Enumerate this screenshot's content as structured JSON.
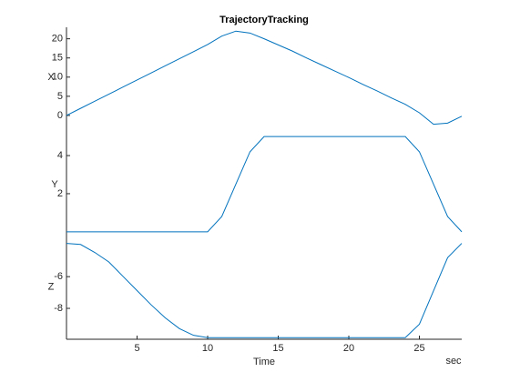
{
  "chart_data": [
    {
      "type": "line",
      "title": "TrajectoryTracking",
      "ylabel": "X",
      "color": "#0072bd",
      "x": [
        0,
        1,
        2,
        3,
        4,
        5,
        6,
        7,
        8,
        9,
        10,
        11,
        12,
        13,
        14,
        15,
        16,
        17,
        18,
        19,
        20,
        21,
        22,
        23,
        24,
        25,
        26,
        27,
        28
      ],
      "values": [
        0,
        1.85,
        3.7,
        5.55,
        7.4,
        9.25,
        11.1,
        12.95,
        14.8,
        16.65,
        18.5,
        20.7,
        22,
        21.5,
        20,
        18.4,
        16.8,
        15,
        13.3,
        11.6,
        9.9,
        8.1,
        6.4,
        4.6,
        2.9,
        0.7,
        -2.3,
        -2,
        -0.2
      ],
      "xlim": [
        0,
        28
      ],
      "ylim": [
        -5,
        23
      ],
      "yticks": [
        0,
        5,
        10,
        15,
        20
      ]
    },
    {
      "type": "line",
      "ylabel": "Y",
      "color": "#0072bd",
      "x": [
        0,
        1,
        2,
        3,
        4,
        5,
        6,
        7,
        8,
        9,
        10,
        11,
        12,
        13,
        14,
        15,
        16,
        17,
        18,
        19,
        20,
        21,
        22,
        23,
        24,
        25,
        26,
        27,
        28
      ],
      "values": [
        0,
        0,
        0,
        0,
        0,
        0,
        0,
        0,
        0,
        0,
        0,
        0.8,
        2.5,
        4.2,
        5,
        5,
        5,
        5,
        5,
        5,
        5,
        5,
        5,
        5,
        5,
        4.2,
        2.5,
        0.8,
        0
      ],
      "xlim": [
        0,
        28
      ],
      "ylim": [
        -0.15,
        5.1
      ],
      "yticks": [
        2,
        4
      ]
    },
    {
      "type": "line",
      "ylabel": "Z",
      "xlabel": "Time",
      "xunit": "sec",
      "color": "#0072bd",
      "x": [
        0,
        1,
        2,
        3,
        4,
        5,
        6,
        7,
        8,
        9,
        10,
        11,
        12,
        13,
        14,
        15,
        16,
        17,
        18,
        19,
        20,
        21,
        22,
        23,
        24,
        25,
        26,
        27,
        28
      ],
      "values": [
        -3.9,
        -3.97,
        -4.47,
        -5.07,
        -5.98,
        -6.88,
        -7.78,
        -8.6,
        -9.28,
        -9.7,
        -9.85,
        -9.85,
        -9.85,
        -9.85,
        -9.85,
        -9.85,
        -9.85,
        -9.85,
        -9.85,
        -9.85,
        -9.85,
        -9.85,
        -9.85,
        -9.85,
        -9.85,
        -9,
        -6.9,
        -4.8,
        -3.9
      ],
      "xlim": [
        0,
        28
      ],
      "ylim": [
        -9.95,
        -3.35
      ],
      "yticks": [
        -8,
        -6
      ],
      "xticks": [
        5,
        10,
        15,
        20,
        25
      ]
    }
  ]
}
